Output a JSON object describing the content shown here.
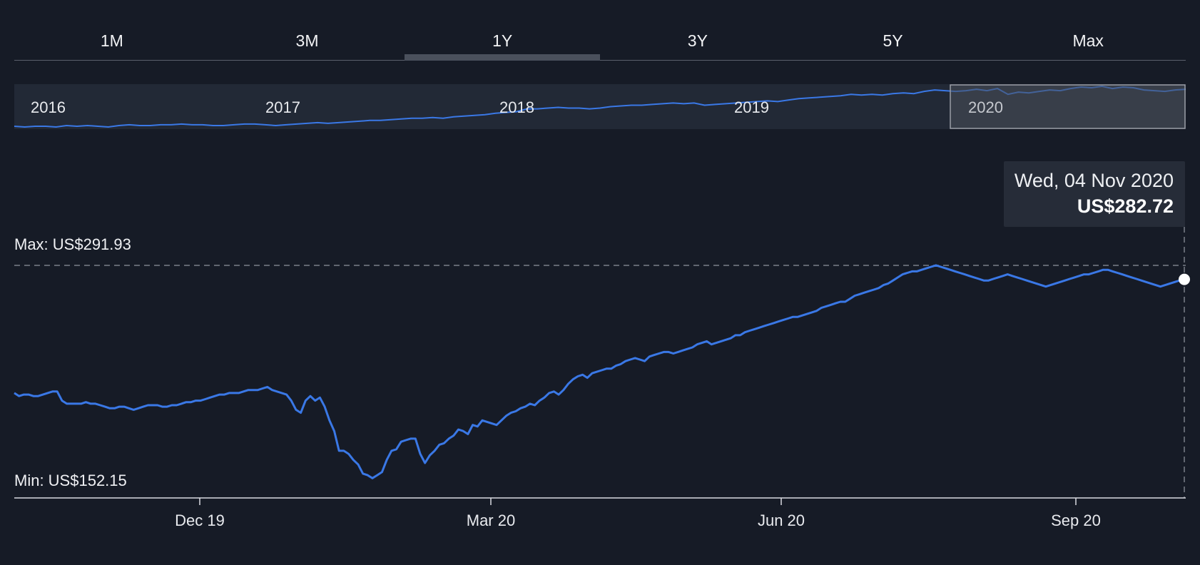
{
  "tabs": [
    {
      "label": "1M",
      "active": false
    },
    {
      "label": "3M",
      "active": false
    },
    {
      "label": "1Y",
      "active": true
    },
    {
      "label": "3Y",
      "active": false
    },
    {
      "label": "5Y",
      "active": false
    },
    {
      "label": "Max",
      "active": false
    }
  ],
  "colors": {
    "background": "#161b26",
    "line": "#3a78e6",
    "navigator_bg": "#222936",
    "navigator_selection": "#4b505a"
  },
  "navigator": {
    "year_labels": [
      "2016",
      "2017",
      "2018",
      "2019",
      "2020"
    ],
    "selected_range": "1Y",
    "history": [
      44,
      43,
      44,
      44,
      43,
      45,
      44,
      45,
      44,
      43,
      45,
      46,
      45,
      45,
      46,
      46,
      47,
      46,
      46,
      45,
      45,
      46,
      47,
      47,
      46,
      45,
      46,
      47,
      48,
      49,
      48,
      49,
      50,
      51,
      52,
      52,
      53,
      54,
      55,
      55,
      56,
      55,
      57,
      58,
      59,
      60,
      62,
      63,
      64,
      68,
      68,
      69,
      70,
      69,
      69,
      68,
      69,
      71,
      72,
      73,
      73,
      74,
      75,
      76,
      75,
      76,
      73,
      74,
      75,
      76,
      77,
      78,
      79,
      78,
      80,
      82,
      83,
      84,
      85,
      86,
      88,
      87,
      88,
      87,
      89,
      90,
      89,
      92,
      94,
      93,
      92,
      93,
      95,
      93,
      96,
      88,
      91,
      90,
      92,
      94,
      93,
      96,
      98,
      97,
      99,
      96,
      98,
      97,
      94,
      93,
      92,
      94,
      95
    ]
  },
  "chart_data": {
    "type": "line",
    "series": [
      {
        "values": [
          208,
          206,
          207,
          207,
          206,
          206,
          207,
          208,
          209,
          209,
          203,
          201,
          201,
          201,
          201,
          202,
          201,
          201,
          200,
          199,
          198,
          198,
          199,
          199,
          198,
          197,
          198,
          199,
          200,
          200,
          200,
          199,
          199,
          200,
          200,
          201,
          202,
          202,
          203,
          203,
          204,
          205,
          206,
          207,
          207,
          208,
          208,
          208,
          209,
          210,
          210,
          210,
          211,
          212,
          210,
          209,
          208,
          207,
          203,
          197,
          195,
          203,
          206,
          203,
          205,
          199,
          190,
          183,
          170,
          170,
          168,
          164,
          161,
          155,
          154,
          152,
          154,
          156,
          164,
          170,
          171,
          176,
          177,
          178,
          178,
          168,
          162,
          167,
          170,
          174,
          175,
          178,
          180,
          184,
          183,
          181,
          187,
          186,
          190,
          189,
          188,
          187,
          190,
          193,
          195,
          196,
          198,
          199,
          201,
          200,
          203,
          205,
          208,
          209,
          207,
          210,
          214,
          217,
          219,
          220,
          218,
          221,
          222,
          223,
          224,
          224,
          226,
          227,
          229,
          230,
          231,
          230,
          229,
          232,
          233,
          234,
          235,
          235,
          234,
          235,
          236,
          237,
          238,
          240,
          241,
          242,
          240,
          241,
          242,
          243,
          244,
          246,
          246,
          248,
          249,
          250,
          251,
          252,
          253,
          254,
          255,
          256,
          257,
          258,
          258,
          259,
          260,
          261,
          262,
          264,
          265,
          266,
          267,
          268,
          268,
          270,
          272,
          273,
          274,
          275,
          276,
          277,
          279,
          280,
          282,
          284,
          286,
          287,
          288,
          288,
          289,
          290,
          291,
          292,
          291,
          290,
          289,
          288,
          287,
          286,
          285,
          284,
          283,
          282,
          282,
          283,
          284,
          285,
          286,
          285,
          284,
          283,
          282,
          281,
          280,
          279,
          278,
          279,
          280,
          281,
          282,
          283,
          284,
          285,
          286,
          286,
          287,
          288,
          289,
          289,
          288,
          287,
          286,
          285,
          284,
          283,
          282,
          281,
          280,
          279,
          278,
          279,
          280,
          281,
          282,
          282.72
        ]
      }
    ],
    "x_ticks": [
      "Dec 19",
      "Mar 20",
      "Jun 20",
      "Sep 20"
    ],
    "annotations": {
      "max_label": "Max: US$291.93",
      "min_label": "Min: US$152.15",
      "max_value": 291.93,
      "min_value": 152.15
    },
    "tooltip": {
      "date": "Wed, 04 Nov 2020",
      "value": "US$282.72"
    },
    "legend": "none",
    "grid": false
  }
}
